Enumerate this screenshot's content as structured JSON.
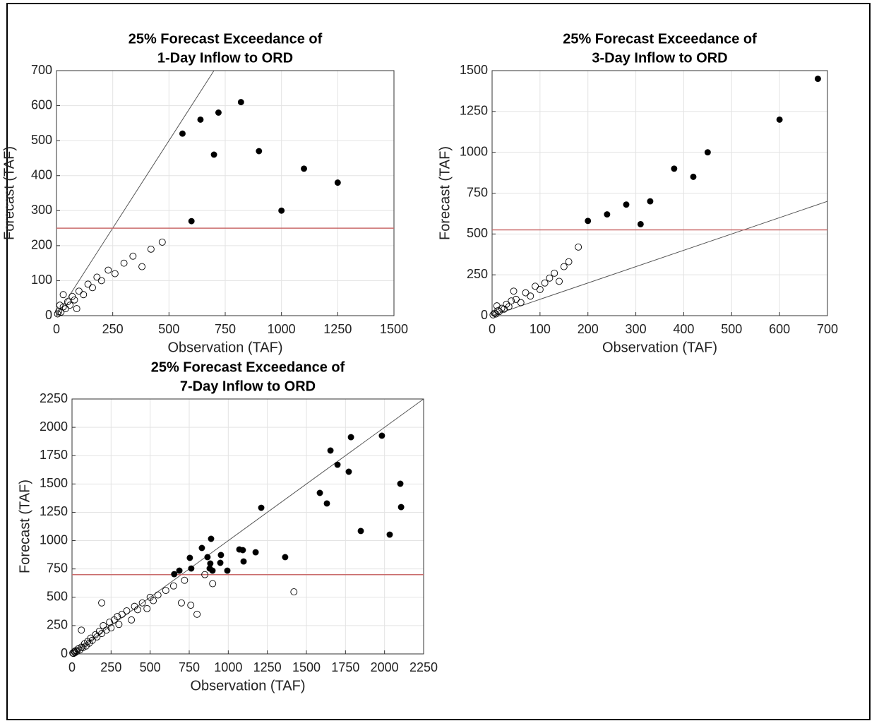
{
  "chart_data": [
    {
      "type": "scatter",
      "title": [
        "25% Forecast Exceedance of",
        "1-Day Inflow to ORD"
      ],
      "x_label": "Observation (TAF)",
      "y_label": "Forecast (TAF)",
      "xlim": [
        0,
        1500
      ],
      "xticks": [
        0,
        250,
        500,
        750,
        1000,
        1250,
        1500
      ],
      "ylim": [
        0,
        700
      ],
      "yticks": [
        0,
        100,
        200,
        300,
        400,
        500,
        600,
        700
      ],
      "grid": true,
      "diagonal": true,
      "threshold": {
        "value": 250,
        "color": "#c96b6b"
      },
      "series": [
        {
          "filled": false,
          "color": "#000000",
          "x": [
            5,
            10,
            20,
            30,
            40,
            50,
            60,
            70,
            80,
            100,
            120,
            140,
            160,
            180,
            200,
            230,
            260,
            300,
            340,
            380,
            420,
            470,
            30,
            15,
            90
          ],
          "values": [
            5,
            12,
            10,
            25,
            20,
            40,
            30,
            55,
            45,
            70,
            60,
            90,
            80,
            110,
            100,
            130,
            120,
            150,
            170,
            140,
            190,
            210,
            60,
            30,
            20
          ]
        },
        {
          "filled": true,
          "color": "#000000",
          "x": [
            560,
            640,
            720,
            820,
            700,
            900,
            1000,
            1100,
            1250,
            600
          ],
          "values": [
            520,
            560,
            580,
            610,
            460,
            470,
            300,
            420,
            380,
            270
          ]
        }
      ]
    },
    {
      "type": "scatter",
      "title": [
        "25% Forecast Exceedance of",
        "3-Day Inflow to ORD"
      ],
      "x_label": "Observation (TAF)",
      "y_label": "Forecast (TAF)",
      "xlim": [
        0,
        700
      ],
      "xticks": [
        0,
        100,
        200,
        300,
        400,
        500,
        600,
        700
      ],
      "ylim": [
        0,
        1500
      ],
      "yticks": [
        0,
        250,
        500,
        750,
        1000,
        1250,
        1500
      ],
      "grid": true,
      "diagonal": true,
      "threshold": {
        "value": 525,
        "color": "#c96b6b"
      },
      "series": [
        {
          "filled": false,
          "color": "#000000",
          "x": [
            2,
            5,
            8,
            12,
            15,
            20,
            25,
            30,
            35,
            40,
            50,
            60,
            70,
            80,
            90,
            100,
            110,
            120,
            130,
            140,
            150,
            160,
            10,
            45,
            180
          ],
          "values": [
            5,
            15,
            10,
            30,
            25,
            45,
            40,
            70,
            55,
            90,
            100,
            80,
            140,
            120,
            180,
            160,
            200,
            230,
            260,
            210,
            300,
            330,
            60,
            150,
            420
          ]
        },
        {
          "filled": true,
          "color": "#000000",
          "x": [
            200,
            240,
            280,
            310,
            330,
            380,
            420,
            450,
            600,
            680
          ],
          "values": [
            580,
            620,
            680,
            560,
            700,
            900,
            850,
            1000,
            1200,
            1450
          ]
        }
      ]
    },
    {
      "type": "scatter",
      "title": [
        "25% Forecast Exceedance of",
        "7-Day Inflow to ORD"
      ],
      "x_label": "Observation (TAF)",
      "y_label": "Forecast (TAF)",
      "xlim": [
        0,
        2250
      ],
      "xticks": [
        0,
        250,
        500,
        750,
        1000,
        1250,
        1500,
        1750,
        2000,
        2250
      ],
      "ylim": [
        0,
        2250
      ],
      "yticks": [
        0,
        250,
        500,
        750,
        1000,
        1250,
        1500,
        1750,
        2000,
        2250
      ],
      "grid": true,
      "diagonal": true,
      "threshold": {
        "value": 700,
        "color": "#c96b6b"
      },
      "series": [
        {
          "filled": false,
          "color": "#000000",
          "x": [
            5,
            10,
            15,
            20,
            25,
            30,
            40,
            50,
            60,
            70,
            80,
            90,
            100,
            110,
            120,
            130,
            150,
            160,
            175,
            190,
            200,
            220,
            240,
            250,
            270,
            290,
            300,
            320,
            350,
            380,
            400,
            420,
            450,
            480,
            500,
            520,
            550,
            600,
            650,
            700,
            720,
            760,
            800,
            850,
            900,
            1420,
            190,
            60
          ],
          "values": [
            8,
            5,
            20,
            12,
            30,
            22,
            45,
            35,
            60,
            55,
            90,
            70,
            110,
            95,
            140,
            120,
            170,
            150,
            200,
            180,
            250,
            210,
            280,
            230,
            300,
            330,
            260,
            350,
            380,
            300,
            420,
            390,
            450,
            400,
            500,
            470,
            520,
            560,
            600,
            450,
            650,
            430,
            350,
            700,
            620,
            548,
            450,
            210
          ]
        },
        {
          "filled": true,
          "color": "#000000",
          "x": [
            1983,
            1785,
            1654,
            1699,
            1771,
            2101,
            2106,
            1586,
            1631,
            1848,
            2033,
            1211,
            1364,
            890,
            831,
            754,
            763,
            654,
            687,
            867,
            885,
            899,
            881,
            953,
            949,
            994,
            1071,
            1093,
            1098,
            1175
          ],
          "values": [
            1926,
            1913,
            1795,
            1670,
            1608,
            1502,
            1296,
            1421,
            1328,
            1085,
            1053,
            1290,
            854,
            1016,
            935,
            848,
            754,
            704,
            735,
            854,
            798,
            735,
            754,
            873,
            804,
            735,
            922,
            916,
            816,
            897
          ]
        }
      ]
    }
  ]
}
